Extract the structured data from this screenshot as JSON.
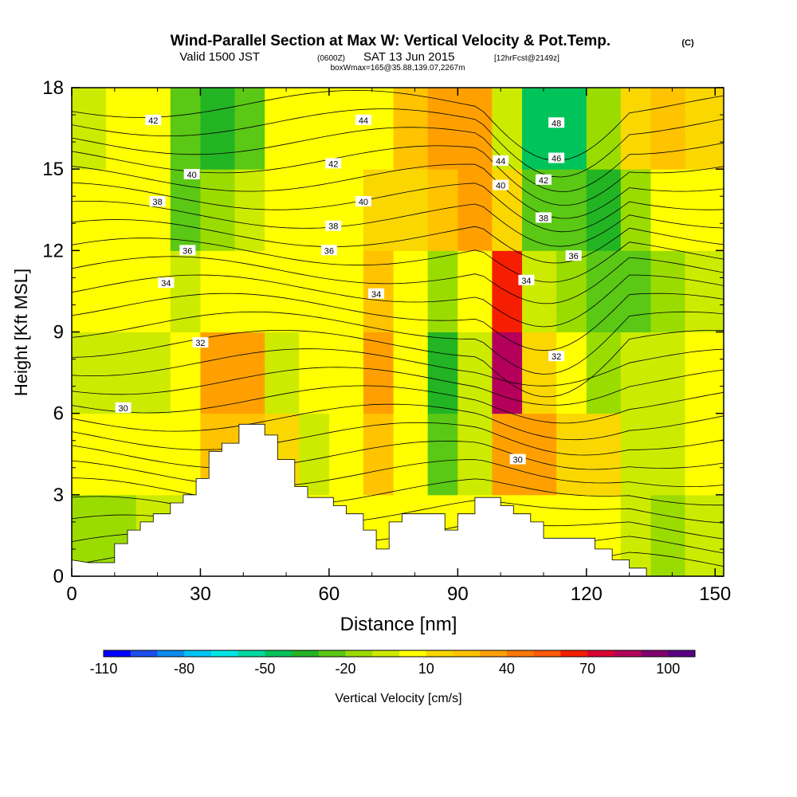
{
  "header": {
    "title": "Wind-Parallel Section at Max W: Vertical Velocity & Pot.Temp.",
    "copyright": "(C)",
    "valid_prefix": "Valid 1500 JST",
    "valid_utc": "(0600Z)",
    "valid_date": "SAT 13 Jun 2015",
    "forecast": "[12hrFcst@2149z]",
    "boxwmax": "boxWmax=165@35.88,139.07,2267m"
  },
  "chart_data": {
    "type": "heatmap",
    "title": "Wind-Parallel Section at Max W: Vertical Velocity & Pot.Temp.",
    "xlabel": "Distance [nm]",
    "ylabel": "Height [Kft MSL]",
    "xlim": [
      0,
      152
    ],
    "ylim": [
      0,
      18
    ],
    "xticks": [
      "0",
      "30",
      "60",
      "90",
      "120",
      "150"
    ],
    "xtick_values": [
      0,
      30,
      60,
      90,
      120,
      150
    ],
    "yticks": [
      "0",
      "3",
      "6",
      "9",
      "12",
      "15",
      "18"
    ],
    "ytick_values": [
      0,
      3,
      6,
      9,
      12,
      15,
      18
    ],
    "colorbar": {
      "label": "Vertical Velocity [cm/s]",
      "min": -110,
      "max": 110,
      "step": 10,
      "tick_labels": [
        "-110",
        "-80",
        "-50",
        "-20",
        "10",
        "40",
        "70",
        "100"
      ],
      "tick_values": [
        -110,
        -80,
        -50,
        -20,
        10,
        40,
        70,
        100
      ],
      "colors": [
        "#0000ff",
        "#1e50f0",
        "#0a8cf0",
        "#00c3f5",
        "#00e6e6",
        "#00d9a0",
        "#00c35a",
        "#23b423",
        "#5ac814",
        "#9bdc00",
        "#cdeb00",
        "#ffff00",
        "#fad700",
        "#ffc300",
        "#ffa000",
        "#ff7800",
        "#ff5a00",
        "#f51e00",
        "#dc0032",
        "#b4005a",
        "#82006e",
        "#5a0082"
      ]
    },
    "terrain_nm_kft": [
      [
        0,
        0.6
      ],
      [
        4,
        0.5
      ],
      [
        10,
        0.5
      ],
      [
        10,
        1.2
      ],
      [
        13,
        1.2
      ],
      [
        13,
        1.7
      ],
      [
        16,
        1.7
      ],
      [
        16,
        2
      ],
      [
        19,
        2
      ],
      [
        19,
        2.3
      ],
      [
        23,
        2.3
      ],
      [
        23,
        2.7
      ],
      [
        26,
        2.7
      ],
      [
        26,
        3
      ],
      [
        29,
        3
      ],
      [
        29,
        3.6
      ],
      [
        32,
        3.6
      ],
      [
        32,
        4.6
      ],
      [
        35,
        4.6
      ],
      [
        35,
        4.9
      ],
      [
        39,
        4.9
      ],
      [
        39,
        5.6
      ],
      [
        45,
        5.6
      ],
      [
        45,
        5.2
      ],
      [
        48,
        5.2
      ],
      [
        48,
        4.3
      ],
      [
        52,
        4.3
      ],
      [
        52,
        3.3
      ],
      [
        55,
        3.3
      ],
      [
        55,
        2.9
      ],
      [
        61,
        2.9
      ],
      [
        61,
        2.6
      ],
      [
        64,
        2.6
      ],
      [
        64,
        2.3
      ],
      [
        68,
        2.3
      ],
      [
        68,
        1.7
      ],
      [
        71,
        1.7
      ],
      [
        71,
        1
      ],
      [
        74,
        1
      ],
      [
        74,
        2
      ],
      [
        77,
        2
      ],
      [
        77,
        2.3
      ],
      [
        87,
        2.3
      ],
      [
        87,
        1.7
      ],
      [
        90,
        1.7
      ],
      [
        90,
        2.3
      ],
      [
        94,
        2.3
      ],
      [
        94,
        2.9
      ],
      [
        100,
        2.9
      ],
      [
        100,
        2.6
      ],
      [
        103,
        2.6
      ],
      [
        103,
        2.3
      ],
      [
        107,
        2.3
      ],
      [
        107,
        2
      ],
      [
        110,
        2
      ],
      [
        110,
        1.4
      ],
      [
        122,
        1.4
      ],
      [
        122,
        1
      ],
      [
        126,
        1
      ],
      [
        126,
        0.6
      ],
      [
        130,
        0.6
      ],
      [
        130,
        0.3
      ],
      [
        134,
        0.3
      ],
      [
        134,
        0
      ],
      [
        152,
        0
      ]
    ],
    "vertical_velocity_cells_cm_s": [
      {
        "x": 0,
        "y": 0,
        "value": -15
      },
      {
        "x": 0,
        "y": 3,
        "value": 0
      },
      {
        "x": 0,
        "y": 6,
        "value": -5
      },
      {
        "x": 0,
        "y": 9,
        "value": 0
      },
      {
        "x": 0,
        "y": 12,
        "value": 5
      },
      {
        "x": 0,
        "y": 15,
        "value": -5
      },
      {
        "x": 8,
        "y": 0,
        "value": -15
      },
      {
        "x": 8,
        "y": 3,
        "value": 0
      },
      {
        "x": 8,
        "y": 6,
        "value": -10
      },
      {
        "x": 8,
        "y": 9,
        "value": 5
      },
      {
        "x": 8,
        "y": 12,
        "value": 5
      },
      {
        "x": 8,
        "y": 15,
        "value": 0
      },
      {
        "x": 15,
        "y": 0,
        "value": -10
      },
      {
        "x": 15,
        "y": 3,
        "value": 0
      },
      {
        "x": 15,
        "y": 6,
        "value": -10
      },
      {
        "x": 15,
        "y": 9,
        "value": 5
      },
      {
        "x": 15,
        "y": 12,
        "value": 0
      },
      {
        "x": 15,
        "y": 15,
        "value": 5
      },
      {
        "x": 23,
        "y": 0,
        "value": -10
      },
      {
        "x": 23,
        "y": 3,
        "value": 5
      },
      {
        "x": 23,
        "y": 6,
        "value": 5
      },
      {
        "x": 23,
        "y": 9,
        "value": -5
      },
      {
        "x": 23,
        "y": 12,
        "value": -25
      },
      {
        "x": 23,
        "y": 15,
        "value": -25
      },
      {
        "x": 30,
        "y": 0,
        "value": 0
      },
      {
        "x": 30,
        "y": 3,
        "value": 25
      },
      {
        "x": 30,
        "y": 6,
        "value": 30
      },
      {
        "x": 30,
        "y": 9,
        "value": 5
      },
      {
        "x": 30,
        "y": 12,
        "value": -20
      },
      {
        "x": 30,
        "y": 15,
        "value": -35
      },
      {
        "x": 38,
        "y": 0,
        "value": 0
      },
      {
        "x": 38,
        "y": 3,
        "value": 25
      },
      {
        "x": 38,
        "y": 6,
        "value": 30
      },
      {
        "x": 38,
        "y": 9,
        "value": 5
      },
      {
        "x": 38,
        "y": 12,
        "value": -10
      },
      {
        "x": 38,
        "y": 15,
        "value": -30
      },
      {
        "x": 45,
        "y": 0,
        "value": 0
      },
      {
        "x": 45,
        "y": 3,
        "value": 10
      },
      {
        "x": 45,
        "y": 6,
        "value": -10
      },
      {
        "x": 45,
        "y": 9,
        "value": 5
      },
      {
        "x": 45,
        "y": 12,
        "value": 0
      },
      {
        "x": 45,
        "y": 15,
        "value": 0
      },
      {
        "x": 53,
        "y": 0,
        "value": 0
      },
      {
        "x": 53,
        "y": 3,
        "value": -5
      },
      {
        "x": 53,
        "y": 6,
        "value": 0
      },
      {
        "x": 53,
        "y": 9,
        "value": 5
      },
      {
        "x": 53,
        "y": 12,
        "value": 5
      },
      {
        "x": 53,
        "y": 15,
        "value": 0
      },
      {
        "x": 60,
        "y": 0,
        "value": 0
      },
      {
        "x": 60,
        "y": 3,
        "value": 5
      },
      {
        "x": 60,
        "y": 6,
        "value": 5
      },
      {
        "x": 60,
        "y": 9,
        "value": 5
      },
      {
        "x": 60,
        "y": 12,
        "value": 5
      },
      {
        "x": 60,
        "y": 15,
        "value": 5
      },
      {
        "x": 68,
        "y": 0,
        "value": 0
      },
      {
        "x": 68,
        "y": 3,
        "value": 25
      },
      {
        "x": 68,
        "y": 6,
        "value": 35
      },
      {
        "x": 68,
        "y": 9,
        "value": 25
      },
      {
        "x": 68,
        "y": 12,
        "value": 10
      },
      {
        "x": 68,
        "y": 15,
        "value": 5
      },
      {
        "x": 75,
        "y": 0,
        "value": 0
      },
      {
        "x": 75,
        "y": 3,
        "value": 0
      },
      {
        "x": 75,
        "y": 6,
        "value": 5
      },
      {
        "x": 75,
        "y": 9,
        "value": 0
      },
      {
        "x": 75,
        "y": 12,
        "value": 15
      },
      {
        "x": 75,
        "y": 15,
        "value": 20
      },
      {
        "x": 83,
        "y": 0,
        "value": 0
      },
      {
        "x": 83,
        "y": 3,
        "value": -25
      },
      {
        "x": 83,
        "y": 6,
        "value": -40
      },
      {
        "x": 83,
        "y": 9,
        "value": -15
      },
      {
        "x": 83,
        "y": 12,
        "value": 25
      },
      {
        "x": 83,
        "y": 15,
        "value": 30
      },
      {
        "x": 90,
        "y": 0,
        "value": 0
      },
      {
        "x": 90,
        "y": 3,
        "value": -10
      },
      {
        "x": 90,
        "y": 6,
        "value": -10
      },
      {
        "x": 90,
        "y": 9,
        "value": 5
      },
      {
        "x": 90,
        "y": 12,
        "value": 30
      },
      {
        "x": 90,
        "y": 15,
        "value": 35
      },
      {
        "x": 98,
        "y": 0,
        "value": 0
      },
      {
        "x": 98,
        "y": 3,
        "value": 35
      },
      {
        "x": 98,
        "y": 6,
        "value": 80
      },
      {
        "x": 98,
        "y": 9,
        "value": 65
      },
      {
        "x": 98,
        "y": 12,
        "value": 15
      },
      {
        "x": 98,
        "y": 15,
        "value": -5
      },
      {
        "x": 105,
        "y": 0,
        "value": 0
      },
      {
        "x": 105,
        "y": 3,
        "value": 30
      },
      {
        "x": 105,
        "y": 6,
        "value": 15
      },
      {
        "x": 105,
        "y": 9,
        "value": -5
      },
      {
        "x": 105,
        "y": 12,
        "value": -25
      },
      {
        "x": 105,
        "y": 15,
        "value": -45
      },
      {
        "x": 113,
        "y": 0,
        "value": 0
      },
      {
        "x": 113,
        "y": 3,
        "value": 10
      },
      {
        "x": 113,
        "y": 6,
        "value": 5
      },
      {
        "x": 113,
        "y": 9,
        "value": -20
      },
      {
        "x": 113,
        "y": 12,
        "value": -30
      },
      {
        "x": 113,
        "y": 15,
        "value": -50
      },
      {
        "x": 120,
        "y": 0,
        "value": 0
      },
      {
        "x": 120,
        "y": 3,
        "value": 10
      },
      {
        "x": 120,
        "y": 6,
        "value": -15
      },
      {
        "x": 120,
        "y": 9,
        "value": -30
      },
      {
        "x": 120,
        "y": 12,
        "value": -35
      },
      {
        "x": 120,
        "y": 15,
        "value": -20
      },
      {
        "x": 128,
        "y": 0,
        "value": -5
      },
      {
        "x": 128,
        "y": 3,
        "value": -10
      },
      {
        "x": 128,
        "y": 6,
        "value": -10
      },
      {
        "x": 128,
        "y": 9,
        "value": -25
      },
      {
        "x": 128,
        "y": 12,
        "value": -15
      },
      {
        "x": 128,
        "y": 15,
        "value": 10
      },
      {
        "x": 135,
        "y": 0,
        "value": -15
      },
      {
        "x": 135,
        "y": 3,
        "value": -5
      },
      {
        "x": 135,
        "y": 6,
        "value": -5
      },
      {
        "x": 135,
        "y": 9,
        "value": -15
      },
      {
        "x": 135,
        "y": 12,
        "value": 0
      },
      {
        "x": 135,
        "y": 15,
        "value": 20
      },
      {
        "x": 143,
        "y": 0,
        "value": -5
      },
      {
        "x": 143,
        "y": 3,
        "value": 0
      },
      {
        "x": 143,
        "y": 6,
        "value": 0
      },
      {
        "x": 143,
        "y": 9,
        "value": -10
      },
      {
        "x": 143,
        "y": 12,
        "value": 5
      },
      {
        "x": 143,
        "y": 15,
        "value": 15
      }
    ],
    "contour_labels": [
      "30",
      "30",
      "32",
      "32",
      "34",
      "34",
      "34",
      "36",
      "36",
      "36",
      "38",
      "38",
      "38",
      "40",
      "40",
      "40",
      "42",
      "42",
      "42",
      "44",
      "44",
      "46",
      "48"
    ],
    "contour_label_positions": [
      [
        12,
        6.2
      ],
      [
        104,
        4.3
      ],
      [
        30,
        8.6
      ],
      [
        113,
        8.1
      ],
      [
        22,
        10.8
      ],
      [
        71,
        10.4
      ],
      [
        106,
        10.9
      ],
      [
        27,
        12
      ],
      [
        60,
        12
      ],
      [
        117,
        11.8
      ],
      [
        20,
        13.8
      ],
      [
        61,
        12.9
      ],
      [
        110,
        13.2
      ],
      [
        28,
        14.8
      ],
      [
        68,
        13.8
      ],
      [
        100,
        14.4
      ],
      [
        19,
        16.8
      ],
      [
        61,
        15.2
      ],
      [
        110,
        14.6
      ],
      [
        68,
        16.8
      ],
      [
        100,
        15.3
      ],
      [
        113,
        15.4
      ],
      [
        113,
        16.7
      ]
    ]
  }
}
